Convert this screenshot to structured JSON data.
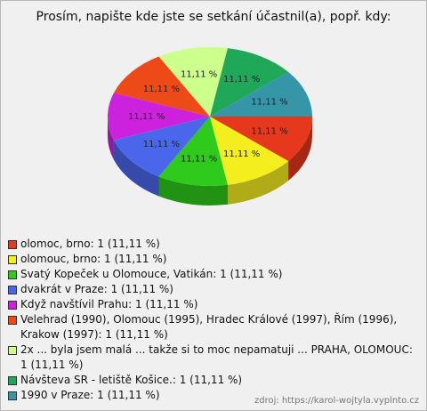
{
  "chart_data": {
    "type": "pie",
    "title": "Prosím, napište kde jste se setkání účastnil(a), popř. kdy:",
    "categories": [
      "olomoc, brno: 1 (11,11 %)",
      "olomouc, brno: 1 (11,11 %)",
      "Svatý Kopeček u Olomouce, Vatikán: 1 (11,11 %)",
      "dvakrát v Praze: 1 (11,11 %)",
      "Když navštívil Prahu: 1 (11,11 %)",
      "Velehrad (1990), Olomouc (1995), Hradec Králové (1997), Řím (1996), Krakow (1997): 1 (11,11 %)",
      "2x ... byla jsem malá ... takže si to moc nepamatuji ... PRAHA, OLOMOUC: 1 (11,11 %)",
      "Návšteva SR - letiště Košice.: 1 (11,11 %)",
      "1990 v Praze: 1 (11,11 %)"
    ],
    "values": [
      11.11,
      11.11,
      11.11,
      11.11,
      11.11,
      11.11,
      11.11,
      11.11,
      11.11
    ],
    "value_labels": [
      "11,11 %",
      "11,11 %",
      "11,11 %",
      "11,11 %",
      "11,11 %",
      "11,11 %",
      "11,11 %",
      "11,11 %",
      "11,11 %"
    ],
    "colors": [
      "#e6381c",
      "#f5ee1e",
      "#2ecb1c",
      "#4a67ec",
      "#cc22dd",
      "#ee4a18",
      "#ccff8c",
      "#1fa858",
      "#3596a8"
    ],
    "source": "zdroj: https://karol-wojtyla.vyplnto.cz"
  }
}
